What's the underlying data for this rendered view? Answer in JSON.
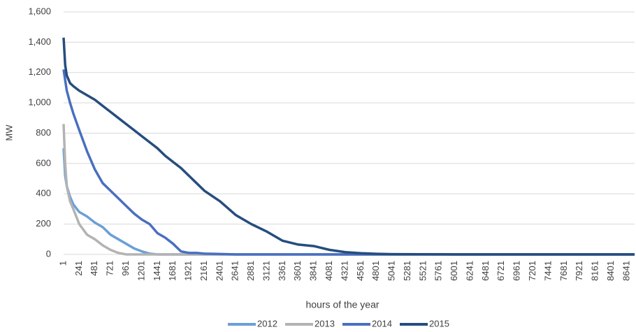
{
  "chart_data": {
    "type": "line",
    "x_label": "hours of the year",
    "y_label": "MW",
    "x": [
      1,
      25,
      50,
      100,
      150,
      241,
      361,
      481,
      601,
      721,
      841,
      961,
      1081,
      1201,
      1321,
      1441,
      1561,
      1681,
      1801,
      1921,
      2041,
      2161,
      2401,
      2641,
      2881,
      3121,
      3361,
      3601,
      3841,
      4081,
      4321,
      4561,
      4801,
      5041,
      6001,
      7201,
      8760
    ],
    "series": [
      {
        "name": "2012",
        "color": "#6b9fd8",
        "values": [
          700,
          520,
          450,
          380,
          330,
          280,
          250,
          210,
          180,
          130,
          100,
          70,
          40,
          20,
          5,
          0,
          0,
          0,
          0,
          0,
          0,
          0,
          0,
          0,
          0,
          0,
          0,
          0,
          0,
          0,
          0,
          0,
          0,
          0,
          0,
          0,
          0
        ]
      },
      {
        "name": "2013",
        "color": "#b3b3b3",
        "values": [
          860,
          600,
          450,
          350,
          300,
          200,
          130,
          100,
          60,
          30,
          10,
          0,
          0,
          0,
          0,
          0,
          0,
          0,
          0,
          0,
          0,
          0,
          0,
          0,
          0,
          0,
          0,
          0,
          0,
          0,
          0,
          0,
          0,
          0,
          0,
          0,
          0
        ]
      },
      {
        "name": "2014",
        "color": "#4a6fc0",
        "values": [
          1220,
          1150,
          1080,
          1000,
          930,
          820,
          680,
          560,
          470,
          420,
          370,
          320,
          270,
          230,
          200,
          140,
          110,
          70,
          20,
          10,
          10,
          5,
          3,
          0,
          0,
          0,
          0,
          0,
          0,
          0,
          0,
          0,
          0,
          0,
          0,
          0,
          0
        ]
      },
      {
        "name": "2015",
        "color": "#264d7e",
        "values": [
          1430,
          1250,
          1180,
          1130,
          1110,
          1080,
          1050,
          1020,
          980,
          940,
          900,
          860,
          820,
          780,
          740,
          700,
          650,
          610,
          570,
          520,
          470,
          420,
          350,
          260,
          200,
          150,
          90,
          65,
          55,
          30,
          15,
          8,
          4,
          2,
          0,
          0,
          0
        ]
      }
    ],
    "xlim": [
      1,
      8760
    ],
    "xticks": [
      1,
      241,
      481,
      721,
      961,
      1201,
      1441,
      1681,
      1921,
      2161,
      2401,
      2641,
      2881,
      3121,
      3361,
      3601,
      3841,
      4081,
      4321,
      4561,
      4801,
      5041,
      5281,
      5521,
      5761,
      6001,
      6241,
      6481,
      6721,
      6961,
      7201,
      7441,
      7681,
      7921,
      8161,
      8401,
      8641
    ],
    "ylim": [
      0,
      1600
    ],
    "yticks": [
      0,
      200,
      400,
      600,
      800,
      {
        "value": 1000,
        "label": "1,000"
      },
      {
        "value": 1200,
        "label": "1,200"
      },
      {
        "value": 1400,
        "label": "1,400"
      },
      {
        "value": 1600,
        "label": "1,600"
      }
    ],
    "grid": true,
    "legend": "bottom"
  }
}
